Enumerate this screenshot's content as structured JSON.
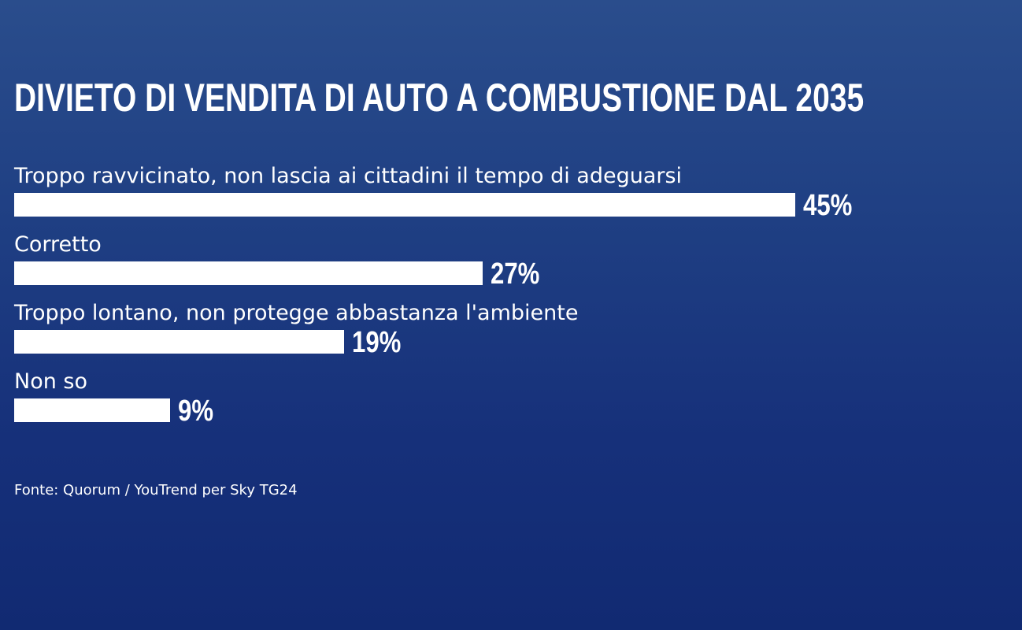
{
  "chart_data": {
    "type": "bar",
    "orientation": "horizontal",
    "title": "DIVIETO DI VENDITA DI AUTO A COMBUSTIONE DAL 2035",
    "categories": [
      "Troppo ravvicinato, non lascia ai cittadini il tempo di adeguarsi",
      "Corretto",
      "Troppo lontano, non protegge abbastanza l'ambiente",
      "Non so"
    ],
    "values": [
      45,
      27,
      19,
      9
    ],
    "value_labels": [
      "45%",
      "27%",
      "19%",
      "9%"
    ],
    "unit": "%",
    "xlim": [
      0,
      45
    ],
    "grid": false,
    "legend": "none",
    "source": "Fonte: Quorum / YouTrend per Sky TG24"
  },
  "colors": {
    "background_top": "#2a4d8c",
    "background_bottom": "#112a72",
    "bar": "#ffffff",
    "text": "#ffffff"
  }
}
